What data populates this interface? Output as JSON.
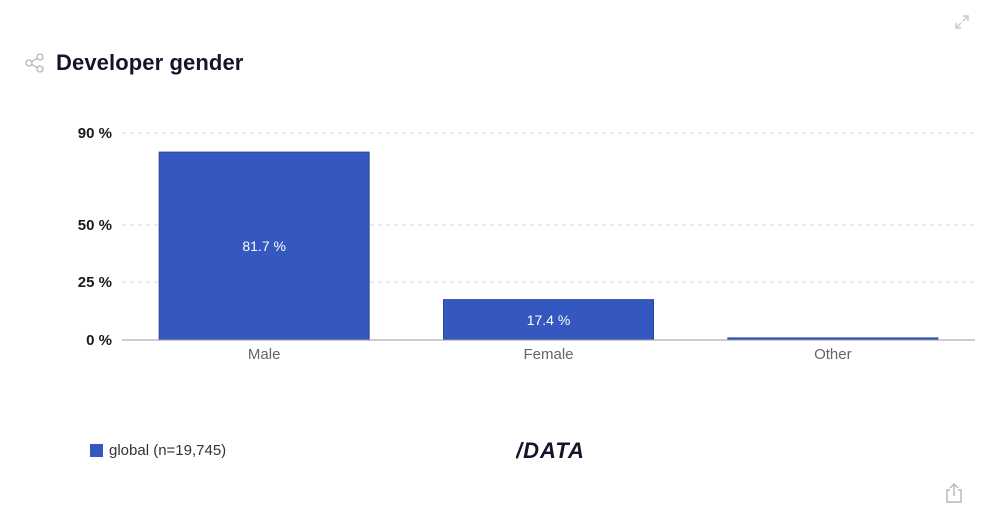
{
  "title": "Developer gender",
  "icons": {
    "share": "share-icon",
    "expand": "expand-icon",
    "export": "export-icon"
  },
  "logo_text": "/DATA",
  "legend": {
    "label": "global (n=19,745)",
    "color": "#3457c0"
  },
  "colors": {
    "bar": "#3457c0",
    "bar_stroke": "#2a47a6",
    "grid": "#d9d9d9",
    "axis": "#9a9aa5",
    "tick_text": "#1a1a1a",
    "category_text": "#666666"
  },
  "chart_data": {
    "type": "bar",
    "title": "Developer gender",
    "categories": [
      "Male",
      "Female",
      "Other"
    ],
    "series": [
      {
        "name": "global (n=19,745)",
        "values": [
          81.7,
          17.4,
          0.9
        ],
        "labels": [
          "81.7 %",
          "17.4 %",
          ""
        ]
      }
    ],
    "y_ticks": [
      0,
      25,
      50,
      90
    ],
    "y_tick_labels": [
      "0 %",
      "25 %",
      "50 %",
      "90 %"
    ],
    "y_scale": "piecewise-linear between ticks",
    "ylim": [
      0,
      90
    ],
    "grid": true,
    "legend_position": "bottom-left"
  }
}
